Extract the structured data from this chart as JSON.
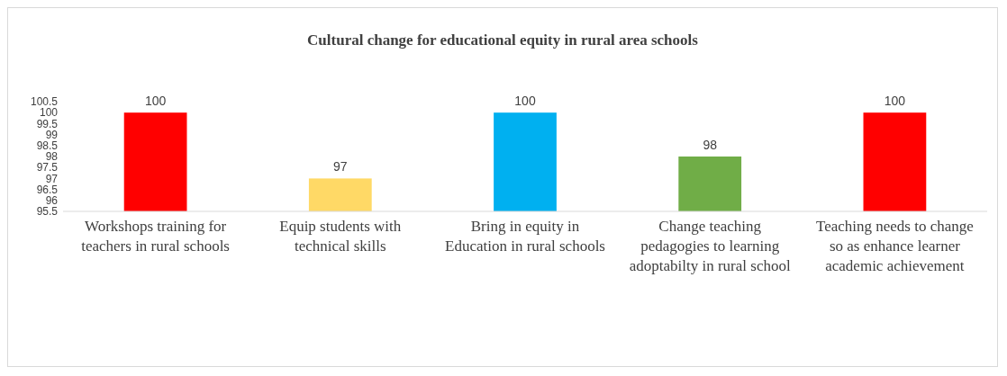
{
  "chart_data": {
    "type": "bar",
    "title": "Cultural change for educational equity in rural area schools",
    "categories": [
      "Workshops training for teachers in rural schools",
      "Equip students with technical skills",
      "Bring in equity in Education in rural schools",
      "Change teaching pedagogies to learning adoptabilty in rural school",
      "Teaching needs to change so as enhance learner academic achievement"
    ],
    "values": [
      100,
      97,
      100,
      98,
      100
    ],
    "colors": [
      "#ff0000",
      "#ffd966",
      "#00b0f0",
      "#70ad47",
      "#ff0000"
    ],
    "ylim": [
      95.5,
      100.5
    ],
    "yticks": [
      95.5,
      96,
      96.5,
      97,
      97.5,
      98,
      98.5,
      99,
      99.5,
      100,
      100.5
    ],
    "data_labels": true
  }
}
